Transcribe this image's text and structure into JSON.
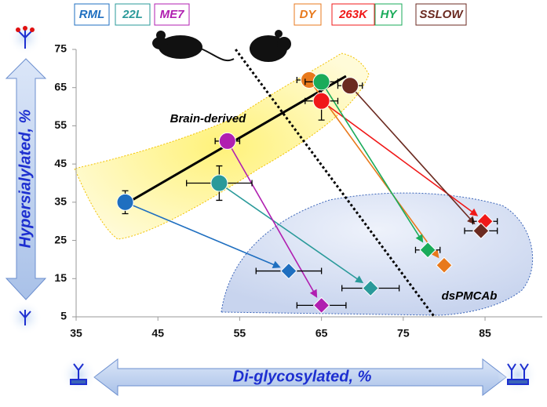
{
  "chart_data": {
    "type": "scatter",
    "xlabel": "Di-glycosylated, %",
    "ylabel": "Hypersialylated, %",
    "annotations": [
      "Brain-derived",
      "dsPMCAb"
    ],
    "xlim": [
      35,
      92
    ],
    "ylim": [
      5,
      75
    ],
    "xticks": [
      35,
      45,
      55,
      65,
      75,
      85
    ],
    "yticks": [
      5,
      15,
      25,
      35,
      45,
      55,
      65,
      75
    ],
    "fit_line": {
      "x": [
        41,
        68
      ],
      "y": [
        34.5,
        68
      ]
    },
    "divider": {
      "x": [
        54.5,
        78.8
      ],
      "y": [
        75,
        5
      ]
    },
    "series": [
      {
        "name": "RML",
        "color": "#1f6fc0",
        "x": [
          41,
          61
        ],
        "y": [
          35,
          17
        ],
        "xerr": [
          null,
          4
        ],
        "yerr": [
          3,
          null
        ]
      },
      {
        "name": "22L",
        "color": "#2a9a9a",
        "x": [
          52.5,
          71
        ],
        "y": [
          40,
          12.5
        ],
        "xerr": [
          4,
          3.5
        ],
        "yerr": [
          4.5,
          null
        ]
      },
      {
        "name": "ME7",
        "color": "#b01fb0",
        "x": [
          53.5,
          65
        ],
        "y": [
          51,
          8
        ],
        "xerr": [
          1.5,
          3
        ],
        "yerr": [
          null,
          null
        ]
      },
      {
        "name": "DY",
        "color": "#e8791c",
        "x": [
          63.5,
          80
        ],
        "y": [
          67,
          18.5
        ],
        "xerr": [
          1.5,
          null
        ],
        "yerr": [
          null,
          null
        ]
      },
      {
        "name": "263K",
        "color": "#f01818",
        "x": [
          65,
          85
        ],
        "y": [
          61.5,
          30
        ],
        "xerr": [
          2,
          1.5
        ],
        "yerr": [
          5,
          null
        ]
      },
      {
        "name": "HY",
        "color": "#1aab5a",
        "x": [
          65,
          78
        ],
        "y": [
          66.5,
          22.5
        ],
        "xerr": [
          2,
          1.5
        ],
        "yerr": [
          null,
          null
        ]
      },
      {
        "name": "SSLOW",
        "color": "#6b2a20",
        "x": [
          68.5,
          84.5
        ],
        "y": [
          65.5,
          27.5
        ],
        "xerr": [
          1.5,
          2
        ],
        "yerr": [
          null,
          null
        ]
      }
    ]
  }
}
